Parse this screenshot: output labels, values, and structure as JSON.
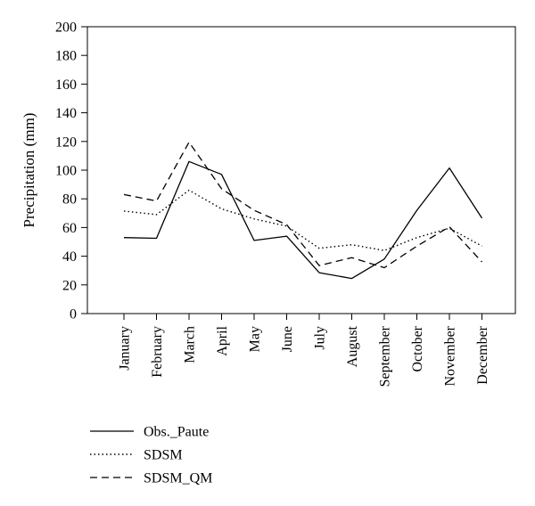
{
  "chart_data": {
    "type": "line",
    "title": "",
    "xlabel": "",
    "ylabel": "Precipitation (mm)",
    "ylim": [
      0,
      200
    ],
    "yticks": [
      0,
      20,
      40,
      60,
      80,
      100,
      120,
      140,
      160,
      180,
      200
    ],
    "grid": false,
    "legend_position": "bottom-left",
    "categories": [
      "January",
      "February",
      "March",
      "April",
      "May",
      "June",
      "July",
      "August",
      "September",
      "October",
      "November",
      "December"
    ],
    "series": [
      {
        "name": "Obs._Paute",
        "style": "solid",
        "color": "#000000",
        "values": [
          53,
          52.5,
          106,
          97,
          51,
          54,
          28.5,
          24.5,
          38,
          72,
          101.5,
          66.5
        ]
      },
      {
        "name": "SDSM",
        "style": "dotted",
        "color": "#000000",
        "values": [
          71.5,
          69,
          86,
          73,
          66,
          61,
          45.5,
          48,
          44,
          53,
          59.5,
          47
        ]
      },
      {
        "name": "SDSM_QM",
        "style": "dashed",
        "color": "#000000",
        "values": [
          83,
          78.5,
          119.5,
          87,
          72,
          62,
          33.5,
          39,
          32,
          47,
          60.5,
          36
        ]
      }
    ]
  }
}
